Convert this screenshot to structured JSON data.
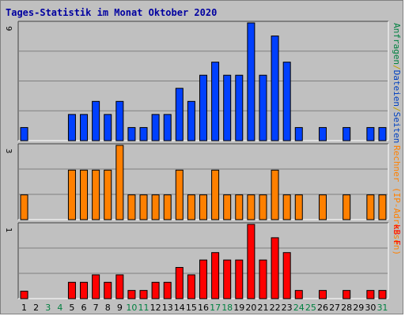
{
  "chart_data": {
    "type": "bar",
    "title": "Tages-Statistik im Monat Oktober 2020",
    "categories": [
      "1",
      "2",
      "3",
      "4",
      "5",
      "6",
      "7",
      "8",
      "9",
      "10",
      "11",
      "12",
      "13",
      "14",
      "15",
      "16",
      "17",
      "18",
      "19",
      "20",
      "21",
      "22",
      "23",
      "24",
      "25",
      "26",
      "27",
      "28",
      "29",
      "30",
      "31"
    ],
    "weekend_days": [
      3,
      4,
      10,
      11,
      17,
      18,
      24,
      25,
      31
    ],
    "colors": {
      "anfragen": "#008040",
      "dateien": "#0040c0",
      "slash": "#c0a000",
      "rechner": "#ff8000",
      "kb": "#ff0000",
      "bar_blue": "#0040ff",
      "bar_orange": "#ff8000",
      "bar_red": "#ff0000",
      "weekday_tick": "#000000",
      "weekend_tick": "#008040",
      "title": "#0000a0"
    },
    "panels": [
      {
        "id": "top",
        "ymax_label": "9",
        "ymax": 9,
        "ymax_color": "#000000",
        "side_label_parts": [
          {
            "text": "Anfragen",
            "color": "#008040"
          },
          {
            "text": "/",
            "color": "#c0a000"
          },
          {
            "text": "Dateien",
            "color": "#0040c0"
          },
          {
            "text": "/",
            "color": "#c0a000"
          },
          {
            "text": "Seiten",
            "color": "#0040c0"
          }
        ],
        "series": [
          {
            "name": "Dateien",
            "color": "#0040ff",
            "values": [
              1,
              0,
              0,
              0,
              2,
              2,
              3,
              2,
              3,
              1,
              1,
              2,
              2,
              4,
              3,
              5,
              6,
              5,
              5,
              9,
              5,
              8,
              6,
              1,
              0,
              1,
              0,
              1,
              0,
              1,
              1
            ]
          }
        ]
      },
      {
        "id": "middle",
        "ymax_label": "3",
        "ymax": 3,
        "ymax_color": "#000000",
        "side_label_parts": [
          {
            "text": "Rechner (IP-Adressen)",
            "color": "#ff8000"
          }
        ],
        "series": [
          {
            "name": "Rechner (IP-Adressen)",
            "color": "#ff8000",
            "values": [
              1,
              0,
              0,
              0,
              2,
              2,
              2,
              2,
              3,
              1,
              1,
              1,
              1,
              2,
              1,
              1,
              2,
              1,
              1,
              1,
              1,
              2,
              1,
              1,
              0,
              1,
              0,
              1,
              0,
              1,
              1
            ]
          }
        ]
      },
      {
        "id": "bottom",
        "ymax_label": "1",
        "ymax": 1,
        "ymax_color": "#000000",
        "side_label_parts": [
          {
            "text": "kB F",
            "color": "#ff0000"
          }
        ],
        "series": [
          {
            "name": "kB F",
            "color": "#ff0000",
            "values": [
              0.1,
              0,
              0,
              0,
              0.22,
              0.22,
              0.32,
              0.22,
              0.32,
              0.11,
              0.11,
              0.22,
              0.22,
              0.42,
              0.32,
              0.52,
              0.62,
              0.52,
              0.52,
              1.0,
              0.52,
              0.82,
              0.62,
              0.11,
              0,
              0.11,
              0,
              0.11,
              0,
              0.11,
              0.11
            ]
          }
        ]
      }
    ],
    "grid": true
  }
}
